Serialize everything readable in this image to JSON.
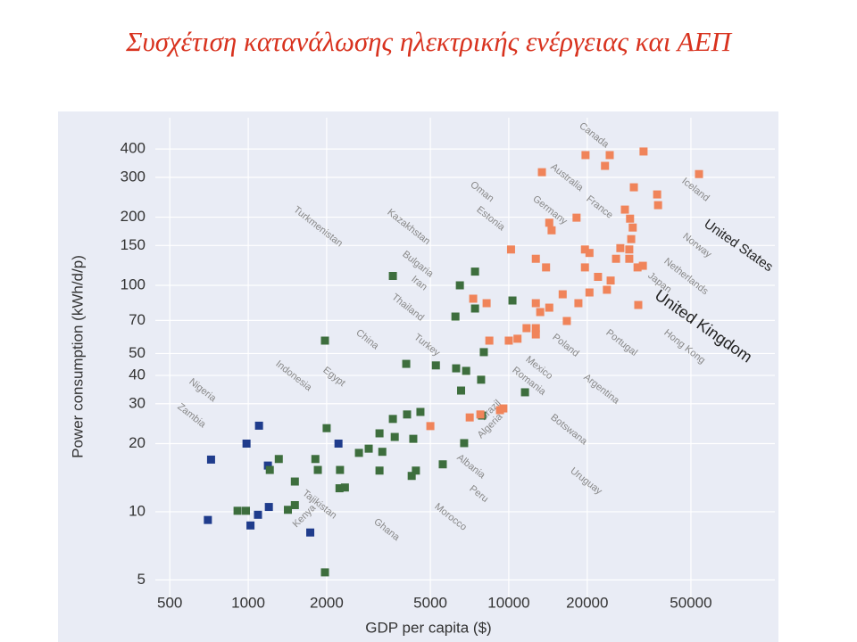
{
  "chart_data": {
    "type": "scatter",
    "title": "Συσχέτιση κατανάλωσης ηλεκτρικής ενέργειας και ΑΕΠ",
    "x_label": "GDP per capita ($)",
    "y_label": "Power consumption (kWh/d/p)",
    "x_log": true,
    "y_log": true,
    "grid": true,
    "xlim": [
      440,
      105000
    ],
    "ylim": [
      4,
      550
    ],
    "xticks": [
      500,
      1000,
      2000,
      5000,
      10000,
      20000,
      50000
    ],
    "yticks": [
      5,
      10,
      20,
      30,
      40,
      50,
      70,
      100,
      150,
      200,
      300,
      400
    ],
    "series": [
      {
        "color": "#1f3c8c",
        "x": [
          720,
          985,
          1100,
          1190,
          700,
          1020,
          1090,
          1200,
          1730,
          2220
        ],
        "values": [
          17,
          20,
          24,
          16,
          9.2,
          8.7,
          9.7,
          10.5,
          8.1,
          20
        ]
      },
      {
        "color": "#3d6e3d",
        "x": [
          910,
          980,
          1210,
          1310,
          1420,
          1510,
          1510,
          1810,
          1970,
          1850,
          1970,
          2000,
          2240,
          2350,
          2250,
          2660,
          2900,
          3190,
          3190,
          3270,
          3590,
          3650,
          4070,
          4040,
          4400,
          4580,
          4240,
          4300,
          5250,
          5580,
          6280,
          6490,
          6240,
          6860,
          6560,
          6740,
          7420,
          7420,
          7830,
          7890,
          8020,
          10330,
          11540,
          3590
        ],
        "values": [
          10.1,
          10.1,
          15.3,
          17.1,
          10.2,
          10.7,
          13.6,
          17.1,
          5.4,
          15.3,
          57,
          23.4,
          12.7,
          12.8,
          15.3,
          18.2,
          19,
          22.2,
          15.2,
          18.4,
          25.7,
          21.4,
          26.9,
          45,
          15.2,
          27.6,
          14.4,
          21,
          44.3,
          16.2,
          43,
          100,
          72.8,
          41.9,
          34.3,
          20.1,
          115,
          79,
          38.3,
          26.6,
          50.7,
          85.7,
          33.7,
          110
        ]
      },
      {
        "color": "#f0845a",
        "x": [
          13400,
          19700,
          23400,
          24400,
          32900,
          53700,
          30200,
          37100,
          37400,
          14300,
          14600,
          18200,
          27900,
          29200,
          29900,
          29500,
          29000,
          31200,
          32700,
          10200,
          12700,
          13900,
          19600,
          20400,
          26800,
          25800,
          29000,
          19600,
          22000,
          24600,
          23800,
          20400,
          16100,
          8220,
          7300,
          12700,
          14300,
          16700,
          18500,
          12700,
          13200,
          11700,
          10800,
          10000,
          12700,
          8420,
          7080,
          7780,
          5000,
          9250,
          9530,
          31400
        ],
        "values": [
          316,
          376,
          337,
          376,
          390,
          310,
          271,
          252,
          226,
          189,
          175,
          199,
          216,
          197,
          180,
          160,
          144,
          120,
          122,
          144,
          131,
          120,
          144,
          139,
          146,
          131,
          131,
          120,
          109,
          105,
          95.6,
          93,
          91.3,
          83.4,
          87.3,
          83.4,
          79.7,
          69.6,
          83.4,
          64.7,
          76.2,
          64.7,
          58.1,
          57,
          60.7,
          57,
          26.1,
          26.9,
          23.9,
          28.1,
          28.6,
          81.9
        ]
      }
    ],
    "annotations": [
      "Canada",
      "Australia",
      "Iceland",
      "Oman",
      "Germany",
      "France",
      "Estonia",
      "United States",
      "Norway",
      "Kazakhstan",
      "Turkmenistan",
      "Bulgaria",
      "Netherlands",
      "Iran",
      "Japan",
      "United Kingdom",
      "Thailand",
      "Turkey",
      "China",
      "Portugal",
      "Poland",
      "Hong Kong",
      "Mexico",
      "Romania",
      "Argentina",
      "Indonesia",
      "Egypt",
      "Nigeria",
      "Zambia",
      "Brazil",
      "Botswana",
      "Algeria",
      "Albania",
      "Uruguay",
      "Peru",
      "Morocco",
      "Tajikistan",
      "Kenya",
      "Ghana"
    ]
  }
}
